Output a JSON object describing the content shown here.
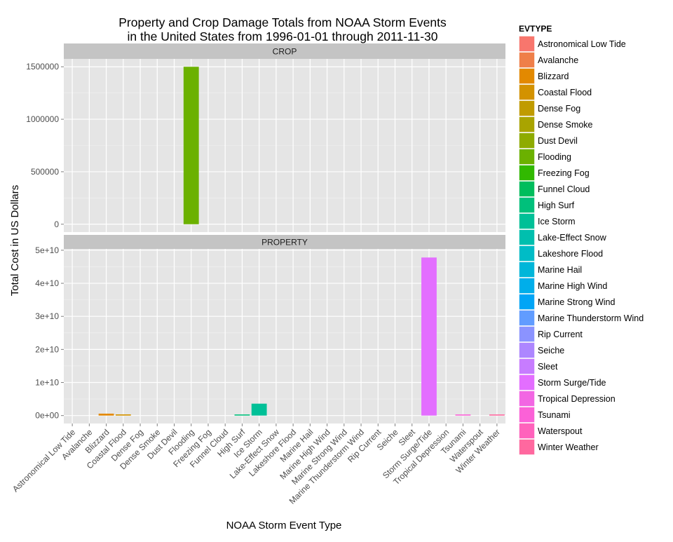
{
  "chart_data": {
    "type": "bar",
    "title_lines": [
      "Property and Crop Damage Totals from NOAA Storm Events",
      " in the United States from 1996-01-01 through 2011-11-30"
    ],
    "xlabel": "NOAA Storm Event Type",
    "ylabel": "Total Cost in US Dollars",
    "legend_title": "EVTYPE",
    "legend_placement": "right",
    "grid": true,
    "categories": [
      "Astronomical Low Tide",
      "Avalanche",
      "Blizzard",
      "Coastal Flood",
      "Dense Fog",
      "Dense Smoke",
      "Dust Devil",
      "Flooding",
      "Freezing Fog",
      "Funnel Cloud",
      "High Surf",
      "Ice Storm",
      "Lake-Effect Snow",
      "Lakeshore Flood",
      "Marine Hail",
      "Marine High Wind",
      "Marine Strong Wind",
      "Marine Thunderstorm Wind",
      "Rip Current",
      "Seiche",
      "Sleet",
      "Storm Surge/Tide",
      "Tropical Depression",
      "Tsunami",
      "Waterspout",
      "Winter Weather"
    ],
    "colors": [
      "#F8766D",
      "#EF7F49",
      "#E38900",
      "#D39200",
      "#C09B00",
      "#A9A400",
      "#8EAB00",
      "#6BB100",
      "#31B900",
      "#00BD5C",
      "#00C07B",
      "#00C097",
      "#00BFAE",
      "#00BCC6",
      "#00B6D9",
      "#00AEEA",
      "#00A5F6",
      "#619CFF",
      "#8B93FF",
      "#AD86FF",
      "#C77CFF",
      "#E36EFF",
      "#F266E3",
      "#FB61D7",
      "#FF62BC",
      "#FF689F"
    ],
    "panels": [
      {
        "name": "CROP",
        "ylim": [
          -75000,
          1575000
        ],
        "y_ticks": [
          0,
          500000,
          1000000,
          1500000
        ],
        "y_tick_labels": [
          "0",
          "500000",
          "1000000",
          "1500000"
        ],
        "values": [
          0,
          0,
          0,
          0,
          0,
          0,
          0,
          1500000,
          0,
          0,
          0,
          0,
          0,
          0,
          0,
          0,
          0,
          0,
          0,
          0,
          0,
          0,
          0,
          0,
          0,
          0
        ]
      },
      {
        "name": "PROPERTY",
        "ylim": [
          -2400000000,
          50400000000
        ],
        "y_ticks": [
          0,
          10000000000,
          20000000000,
          30000000000,
          40000000000,
          50000000000
        ],
        "y_tick_labels": [
          "0e+00",
          "1e+10",
          "2e+10",
          "3e+10",
          "4e+10",
          "5e+10"
        ],
        "values": [
          0,
          0,
          580000000,
          360000000,
          0,
          0,
          0,
          0,
          0,
          0,
          120000000,
          3600000000,
          0,
          0,
          0,
          0,
          0,
          0,
          0,
          0,
          0,
          47800000000,
          0,
          80000000,
          0,
          50000000
        ]
      }
    ]
  }
}
